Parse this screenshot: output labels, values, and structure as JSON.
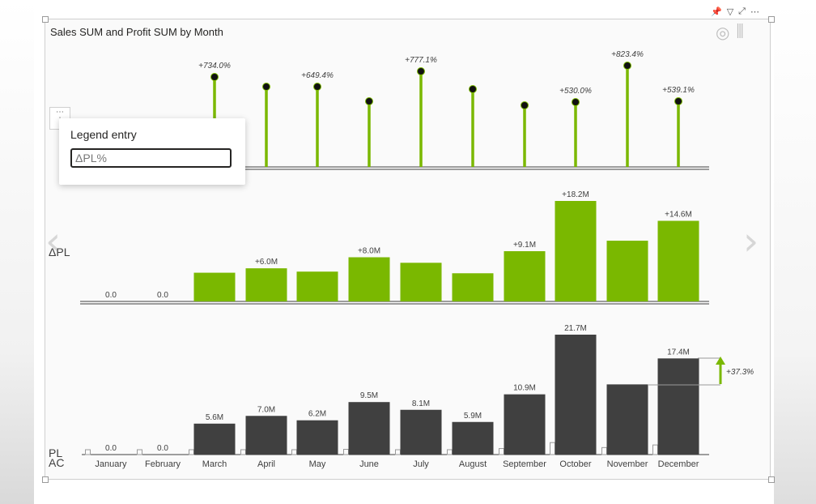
{
  "visual": {
    "title": "Sales SUM and Profit SUM by Month",
    "header_icons": [
      "pin-icon",
      "filter-icon",
      "focus-mode-icon",
      "more-options-icon"
    ],
    "row_labels": {
      "delta_pl": "ΔPL",
      "pl": "PL",
      "ac": "AC"
    }
  },
  "popup": {
    "title": "Legend entry",
    "input_value": "ΔPL%"
  },
  "colors": {
    "green": "#7ab800",
    "dark": "#404040",
    "axis": "#404040"
  },
  "chart_data": [
    {
      "type": "pin",
      "name": "ΔPL%",
      "categories": [
        "January",
        "February",
        "March",
        "April",
        "May",
        "June",
        "July",
        "August",
        "September",
        "October",
        "November",
        "December"
      ],
      "labels": [
        "",
        "",
        "+734.0%",
        "",
        "+649.4%",
        "",
        "+777.1%",
        "",
        "",
        "+530.0%",
        "+823.4%",
        "+539.1%"
      ]
    },
    {
      "type": "bar",
      "name": "ΔPL",
      "categories": [
        "January",
        "February",
        "March",
        "April",
        "May",
        "June",
        "July",
        "August",
        "September",
        "October",
        "November",
        "December"
      ],
      "values": [
        0.0,
        0.0,
        5.2,
        6.0,
        5.4,
        8.0,
        7.0,
        5.1,
        9.1,
        18.2,
        11.0,
        14.6
      ],
      "labels": [
        "0.0",
        "0.0",
        "",
        "+6.0M",
        "",
        "+8.0M",
        "",
        "",
        "+9.1M",
        "+18.2M",
        "",
        "+14.6M"
      ]
    },
    {
      "type": "bar",
      "name": "PL / AC",
      "categories": [
        "January",
        "February",
        "March",
        "April",
        "May",
        "June",
        "July",
        "August",
        "September",
        "October",
        "November",
        "December"
      ],
      "values": [
        0.0,
        0.0,
        5.6,
        7.0,
        6.2,
        9.5,
        8.1,
        5.9,
        10.9,
        21.7,
        12.7,
        17.4
      ],
      "labels": [
        "0.0",
        "0.0",
        "5.6M",
        "7.0M",
        "6.2M",
        "9.5M",
        "8.1M",
        "5.9M",
        "10.9M",
        "21.7M",
        "",
        "17.4M"
      ],
      "variance_label": "+37.3%"
    }
  ]
}
